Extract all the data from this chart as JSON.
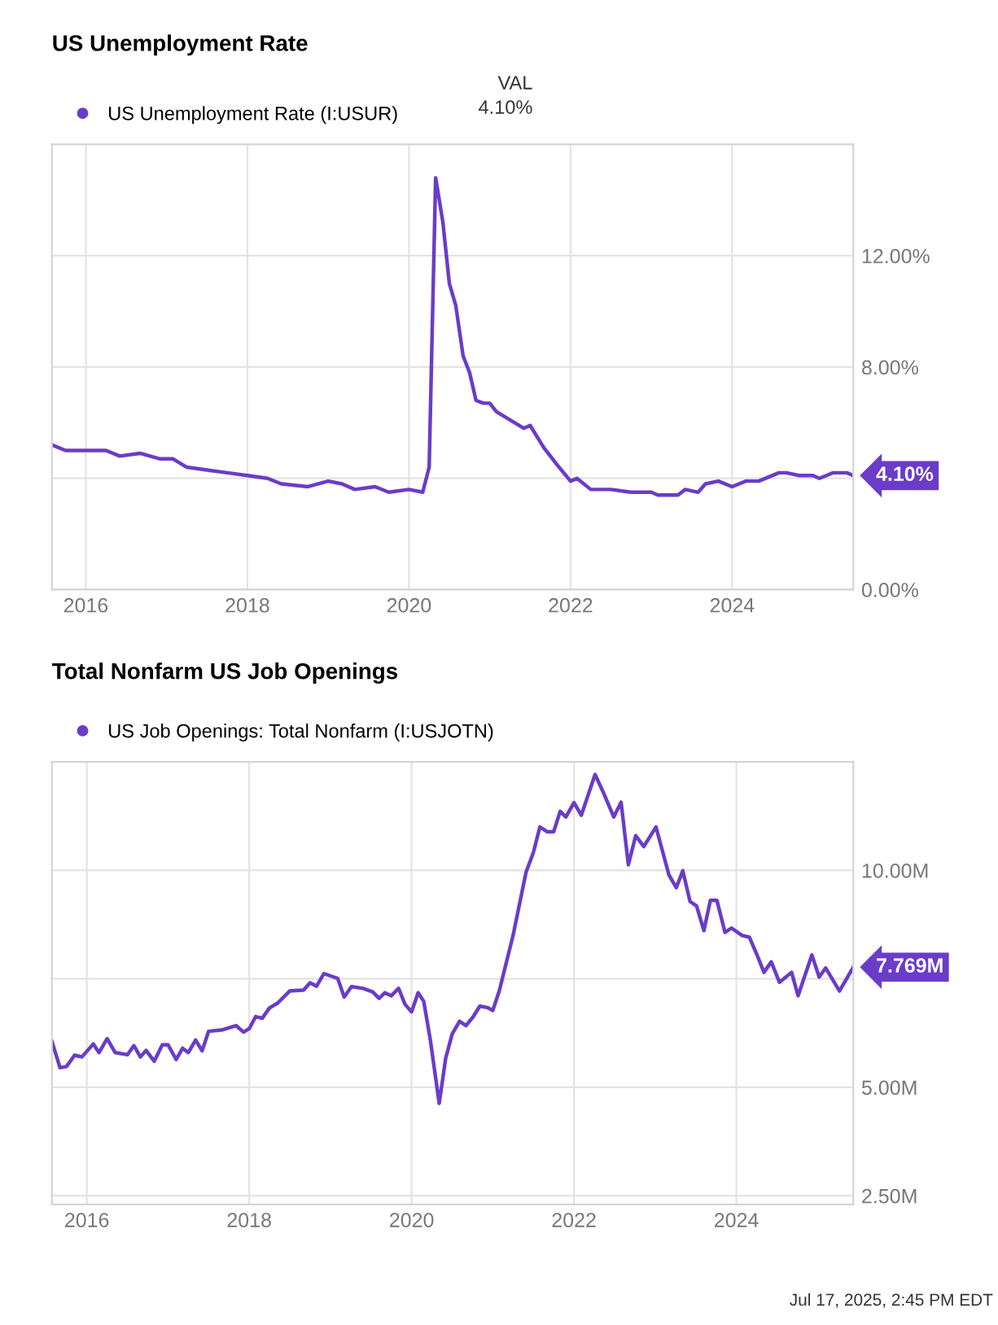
{
  "chart_data": [
    {
      "type": "line",
      "title": "US Unemployment Rate",
      "legend": "top left",
      "grid": true,
      "marker": "none",
      "line_style": "solid",
      "xlim": [
        2015.58,
        2025.5
      ],
      "xticks": [
        2016,
        2018,
        2020,
        2022,
        2024
      ],
      "ylim": [
        0,
        16
      ],
      "yticks": [
        {
          "value": 0,
          "label": "0.00%"
        },
        {
          "value": 4,
          "label": null
        },
        {
          "value": 8,
          "label": "8.00%"
        },
        {
          "value": 12,
          "label": "12.00%"
        }
      ],
      "series": [
        {
          "name": "US Unemployment Rate (I:USUR)",
          "color": "#6a3cc8",
          "x": [
            2015.58,
            2015.75,
            2016.0,
            2016.25,
            2016.42,
            2016.67,
            2016.92,
            2017.08,
            2017.25,
            2017.5,
            2017.75,
            2018.0,
            2018.25,
            2018.42,
            2018.75,
            2019.0,
            2019.17,
            2019.33,
            2019.58,
            2019.75,
            2020.0,
            2020.17,
            2020.25,
            2020.33,
            2020.42,
            2020.5,
            2020.58,
            2020.67,
            2020.75,
            2020.83,
            2020.92,
            2021.0,
            2021.08,
            2021.25,
            2021.42,
            2021.5,
            2021.67,
            2021.83,
            2022.0,
            2022.08,
            2022.25,
            2022.5,
            2022.75,
            2023.0,
            2023.08,
            2023.33,
            2023.42,
            2023.58,
            2023.67,
            2023.83,
            2024.0,
            2024.17,
            2024.33,
            2024.58,
            2024.67,
            2024.83,
            2025.0,
            2025.08,
            2025.25,
            2025.42,
            2025.5
          ],
          "values": [
            5.2,
            5.0,
            5.0,
            5.0,
            4.8,
            4.9,
            4.7,
            4.7,
            4.4,
            4.3,
            4.2,
            4.1,
            4.0,
            3.8,
            3.7,
            3.9,
            3.8,
            3.6,
            3.7,
            3.5,
            3.6,
            3.5,
            4.4,
            14.8,
            13.2,
            11.0,
            10.2,
            8.4,
            7.8,
            6.8,
            6.7,
            6.7,
            6.4,
            6.1,
            5.8,
            5.9,
            5.1,
            4.5,
            3.9,
            4.0,
            3.6,
            3.6,
            3.5,
            3.5,
            3.4,
            3.4,
            3.6,
            3.5,
            3.8,
            3.9,
            3.7,
            3.9,
            3.9,
            4.2,
            4.2,
            4.1,
            4.1,
            4.0,
            4.2,
            4.2,
            4.1
          ]
        }
      ],
      "annotations": [
        "VAL",
        "4.10%",
        {
          "text": "4.10%",
          "x": 2025.5,
          "y": 4.1
        }
      ]
    },
    {
      "type": "line",
      "title": "Total Nonfarm US Job Openings",
      "legend": "top left",
      "grid": true,
      "marker": "none",
      "line_style": "solid",
      "xlim": [
        2015.57,
        2025.44
      ],
      "xticks": [
        2016,
        2018,
        2020,
        2022,
        2024
      ],
      "ylim": [
        2.3,
        12.5
      ],
      "yticks": [
        {
          "value": 2.5,
          "label": "2.50M"
        },
        {
          "value": 5,
          "label": "5.00M"
        },
        {
          "value": 7.5,
          "label": null
        },
        {
          "value": 10,
          "label": "10.00M"
        }
      ],
      "series": [
        {
          "name": "US Job Openings: Total Nonfarm (I:USJOTN)",
          "color": "#6a3cc8",
          "x": [
            2015.57,
            2015.67,
            2015.75,
            2015.85,
            2015.94,
            2016.08,
            2016.15,
            2016.25,
            2016.35,
            2016.5,
            2016.58,
            2016.66,
            2016.73,
            2016.83,
            2016.93,
            2017.0,
            2017.1,
            2017.18,
            2017.25,
            2017.34,
            2017.42,
            2017.5,
            2017.66,
            2017.84,
            2017.93,
            2018.0,
            2018.08,
            2018.16,
            2018.25,
            2018.35,
            2018.5,
            2018.67,
            2018.75,
            2018.83,
            2018.92,
            2019.09,
            2019.17,
            2019.26,
            2019.4,
            2019.52,
            2019.6,
            2019.67,
            2019.75,
            2019.84,
            2019.92,
            2020.0,
            2020.08,
            2020.15,
            2020.23,
            2020.34,
            2020.42,
            2020.5,
            2020.59,
            2020.67,
            2020.76,
            2020.84,
            2020.93,
            2021.0,
            2021.08,
            2021.25,
            2021.41,
            2021.5,
            2021.58,
            2021.67,
            2021.75,
            2021.83,
            2021.9,
            2022.0,
            2022.09,
            2022.26,
            2022.37,
            2022.49,
            2022.58,
            2022.67,
            2022.76,
            2022.86,
            2023.01,
            2023.17,
            2023.26,
            2023.34,
            2023.43,
            2023.51,
            2023.6,
            2023.68,
            2023.76,
            2023.86,
            2023.94,
            2024.07,
            2024.16,
            2024.25,
            2024.34,
            2024.43,
            2024.53,
            2024.68,
            2024.76,
            2024.93,
            2025.02,
            2025.1,
            2025.27,
            2025.44
          ],
          "values": [
            6.06,
            5.45,
            5.48,
            5.74,
            5.7,
            6.0,
            5.8,
            6.12,
            5.8,
            5.75,
            5.96,
            5.7,
            5.85,
            5.6,
            5.98,
            5.98,
            5.64,
            5.9,
            5.8,
            6.09,
            5.84,
            6.29,
            6.32,
            6.42,
            6.27,
            6.35,
            6.63,
            6.59,
            6.83,
            6.94,
            7.22,
            7.24,
            7.41,
            7.33,
            7.62,
            7.51,
            7.08,
            7.32,
            7.28,
            7.2,
            7.05,
            7.18,
            7.11,
            7.28,
            6.91,
            6.74,
            7.18,
            6.98,
            6.1,
            4.63,
            5.67,
            6.23,
            6.52,
            6.42,
            6.63,
            6.87,
            6.84,
            6.77,
            7.22,
            8.5,
            9.96,
            10.41,
            11.0,
            10.89,
            10.89,
            11.36,
            11.23,
            11.56,
            11.27,
            12.21,
            11.76,
            11.23,
            11.57,
            10.13,
            10.8,
            10.55,
            11.0,
            9.89,
            9.6,
            9.99,
            9.28,
            9.18,
            8.61,
            9.31,
            9.31,
            8.57,
            8.67,
            8.5,
            8.46,
            8.07,
            7.65,
            7.89,
            7.42,
            7.65,
            7.11,
            8.05,
            7.54,
            7.75,
            7.22,
            7.769
          ]
        }
      ],
      "annotations": [
        {
          "text": "7.769M",
          "x": 2025.44,
          "y": 7.769
        },
        "Jul 17, 2025, 2:45 PM EDT"
      ]
    }
  ]
}
